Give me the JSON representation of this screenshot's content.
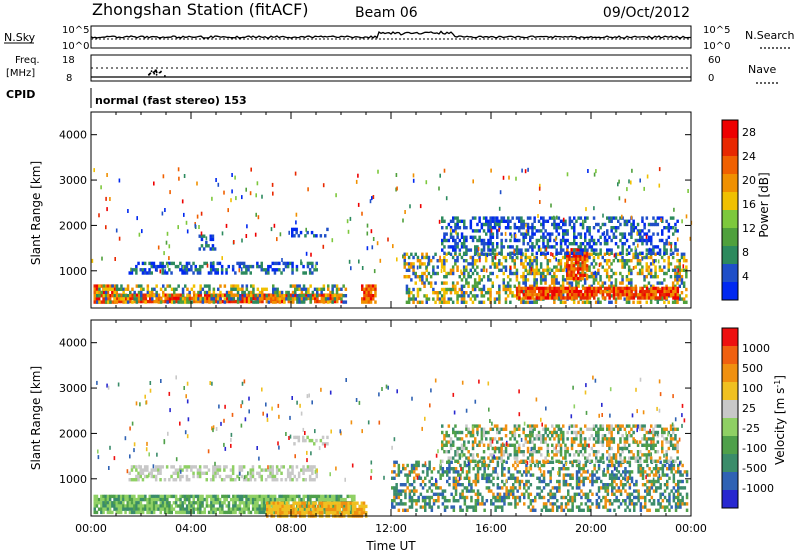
{
  "header": {
    "title": "Zhongshan Station (fitACF)",
    "beam": "Beam 06",
    "date": "09/Oct/2012"
  },
  "panels": {
    "nsky_label": "N.Sky",
    "nsearch_label": "N.Search",
    "nsky_ticks": [
      "10^5",
      "10^0"
    ],
    "nsearch_ticks": [
      "10^5",
      "10^0"
    ],
    "freq_label": "Freq.",
    "freq_unit": "[MHz]",
    "freq_ticks": [
      "18",
      "8"
    ],
    "nave_label": "Nave",
    "nave_ticks": [
      "60",
      "0"
    ],
    "cpid_label": "CPID",
    "cpid_text": "normal (fast stereo) 153"
  },
  "chart_data": [
    {
      "type": "heatmap",
      "name": "Power",
      "ylabel": "Slant Range [km]",
      "yticks": [
        1000,
        2000,
        3000,
        4000
      ],
      "ylim": [
        180,
        4500
      ],
      "xlim": [
        0,
        24
      ],
      "colorbar": {
        "label": "Power [dB]",
        "ticks": [
          "4",
          "8",
          "12",
          "16",
          "20",
          "24",
          "28"
        ],
        "colors": [
          "#0028f0",
          "#1f4fc8",
          "#2c8a5e",
          "#4fa03c",
          "#7dc83c",
          "#f0c000",
          "#f09000",
          "#f06000",
          "#e82800",
          "#ee0000"
        ]
      },
      "regions": [
        {
          "t0": 0.1,
          "t1": 1.0,
          "r0": 300,
          "r1": 700,
          "level": "high"
        },
        {
          "t0": 1.0,
          "t1": 10.0,
          "r0": 350,
          "r1": 500,
          "level": "high"
        },
        {
          "t0": 0.2,
          "t1": 10.2,
          "r0": 280,
          "r1": 700,
          "level": "mid"
        },
        {
          "t0": 4.3,
          "t1": 5.0,
          "r0": 1500,
          "r1": 1800,
          "level": "low"
        },
        {
          "t0": 8.0,
          "t1": 9.5,
          "r0": 1750,
          "r1": 1950,
          "level": "low"
        },
        {
          "t0": 1.5,
          "t1": 9.0,
          "r0": 950,
          "r1": 1200,
          "level": "low"
        },
        {
          "t0": 10.8,
          "t1": 11.4,
          "r0": 280,
          "r1": 700,
          "level": "high"
        },
        {
          "t0": 12.5,
          "t1": 23.8,
          "r0": 280,
          "r1": 1400,
          "level": "mid"
        },
        {
          "t0": 17.0,
          "t1": 23.5,
          "r0": 400,
          "r1": 650,
          "level": "high"
        },
        {
          "t0": 19.0,
          "t1": 19.8,
          "r0": 800,
          "r1": 1500,
          "level": "high"
        },
        {
          "t0": 14.0,
          "t1": 23.5,
          "r0": 1400,
          "r1": 2200,
          "level": "low"
        }
      ]
    },
    {
      "type": "heatmap",
      "name": "Velocity",
      "ylabel": "Slant Range [km]",
      "xlabel": "Time UT",
      "xticks": [
        "00:00",
        "04:00",
        "08:00",
        "12:00",
        "16:00",
        "20:00",
        "00:00"
      ],
      "yticks": [
        1000,
        2000,
        3000,
        4000
      ],
      "ylim": [
        180,
        4500
      ],
      "xlim": [
        0,
        24
      ],
      "colorbar": {
        "label": "Velocity [m s^-1]",
        "ticks": [
          "1000",
          "500",
          "100",
          "25",
          "-25",
          "-100",
          "-500",
          "-1000"
        ],
        "colors": [
          "#2828d0",
          "#2f62b4",
          "#3a8c6a",
          "#4fa04a",
          "#8fd064",
          "#c8c8c8",
          "#f0c020",
          "#f09010",
          "#f06010",
          "#ee1010"
        ]
      },
      "regions": [
        {
          "t0": 0.1,
          "t1": 10.5,
          "r0": 280,
          "r1": 650,
          "level": "green"
        },
        {
          "t0": 7.0,
          "t1": 11.0,
          "r0": 200,
          "r1": 500,
          "level": "orange"
        },
        {
          "t0": 1.5,
          "t1": 9.0,
          "r0": 950,
          "r1": 1300,
          "level": "gray"
        },
        {
          "t0": 8.0,
          "t1": 9.5,
          "r0": 1750,
          "r1": 1950,
          "level": "gray"
        },
        {
          "t0": 12.0,
          "t1": 23.8,
          "r0": 280,
          "r1": 1400,
          "level": "dark-green"
        },
        {
          "t0": 14.0,
          "t1": 23.5,
          "r0": 1400,
          "r1": 2200,
          "level": "mix"
        }
      ]
    }
  ]
}
